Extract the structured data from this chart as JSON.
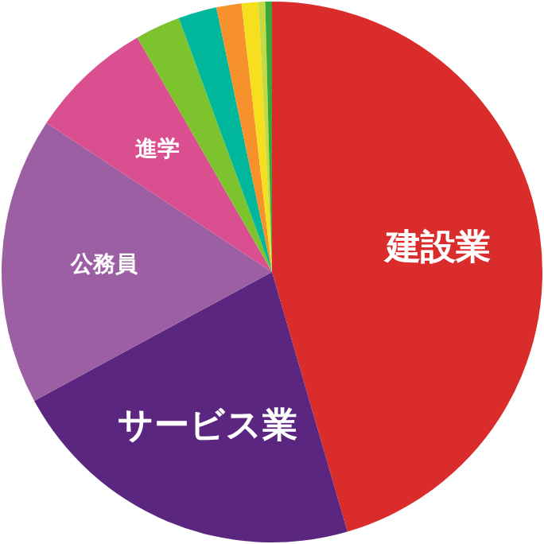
{
  "chart_data": {
    "type": "pie",
    "categories": [
      "建設業",
      "サービス業",
      "公務員",
      "進学",
      null,
      null,
      null,
      null,
      null,
      null
    ],
    "values": [
      45.5,
      21.6,
      17.2,
      7.4,
      2.7,
      2.3,
      1.5,
      1.0,
      0.4,
      0.4
    ],
    "colors": [
      "#db2c2c",
      "#5b2680",
      "#9c5fa4",
      "#da4f8f",
      "#7cc32d",
      "#00b79b",
      "#f6912c",
      "#f5df1f",
      "#c3da44",
      "#38a935"
    ]
  }
}
